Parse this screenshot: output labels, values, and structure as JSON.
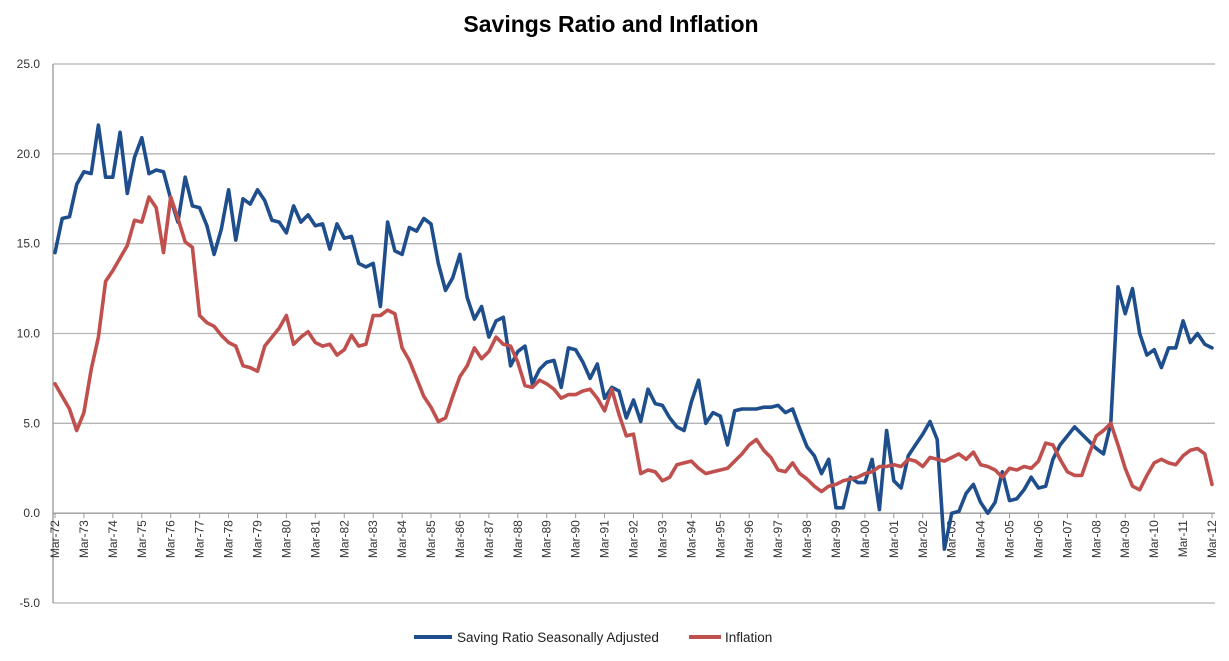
{
  "chart_data": {
    "type": "line",
    "title": "Savings Ratio and Inflation",
    "xlabel": "",
    "ylabel": "",
    "ylim": [
      -5,
      25
    ],
    "y_ticks": [
      "25.0",
      "20.0",
      "15.0",
      "10.0",
      "5.0",
      "0.0",
      "-5.0"
    ],
    "y_tick_values": [
      25,
      20,
      15,
      10,
      5,
      0,
      -5
    ],
    "frequency": "quarterly",
    "grid": true,
    "legend": "bottom",
    "x_tick_labels": [
      "Mar-72",
      "Mar-73",
      "Mar-74",
      "Mar-75",
      "Mar-76",
      "Mar-77",
      "Mar-78",
      "Mar-79",
      "Mar-80",
      "Mar-81",
      "Mar-82",
      "Mar-83",
      "Mar-84",
      "Mar-85",
      "Mar-86",
      "Mar-87",
      "Mar-88",
      "Mar-89",
      "Mar-90",
      "Mar-91",
      "Mar-92",
      "Mar-93",
      "Mar-94",
      "Mar-95",
      "Mar-96",
      "Mar-97",
      "Mar-98",
      "Mar-99",
      "Mar-00",
      "Mar-01",
      "Mar-02",
      "Mar-03",
      "Mar-04",
      "Mar-05",
      "Mar-06",
      "Mar-07",
      "Mar-08",
      "Mar-09",
      "Mar-10",
      "Mar-11",
      "Mar-12"
    ],
    "series": [
      {
        "name": "Saving Ratio Seasonally Adjusted",
        "color": "#1f4e8c",
        "values": [
          14.5,
          16.4,
          16.5,
          18.3,
          19.0,
          18.9,
          21.6,
          18.7,
          18.7,
          21.2,
          17.8,
          19.8,
          20.9,
          18.9,
          19.1,
          19.0,
          17.5,
          16.2,
          18.7,
          17.1,
          17.0,
          16.0,
          14.4,
          15.8,
          18.0,
          15.2,
          17.5,
          17.2,
          18.0,
          17.4,
          16.3,
          16.2,
          15.6,
          17.1,
          16.2,
          16.6,
          16.0,
          16.1,
          14.7,
          16.1,
          15.3,
          15.4,
          13.9,
          13.7,
          13.9,
          11.5,
          16.2,
          14.6,
          14.4,
          15.9,
          15.7,
          16.4,
          16.1,
          13.9,
          12.4,
          13.1,
          14.4,
          12.0,
          10.8,
          11.5,
          9.8,
          10.7,
          10.9,
          8.2,
          9.0,
          9.3,
          7.2,
          8.0,
          8.4,
          8.5,
          7.0,
          9.2,
          9.1,
          8.4,
          7.5,
          8.3,
          6.4,
          7.0,
          6.8,
          5.3,
          6.3,
          5.1,
          6.9,
          6.1,
          6.0,
          5.3,
          4.8,
          4.6,
          6.2,
          7.4,
          5.0,
          5.6,
          5.4,
          3.8,
          5.7,
          5.8,
          5.8,
          5.8,
          5.9,
          5.9,
          6.0,
          5.6,
          5.8,
          4.7,
          3.7,
          3.2,
          2.2,
          3.0,
          0.3,
          0.3,
          2.0,
          1.7,
          1.7,
          3.0,
          0.2,
          4.6,
          1.8,
          1.4,
          3.2,
          3.8,
          4.4,
          5.1,
          4.1,
          -2.0,
          0.0,
          0.1,
          1.1,
          1.6,
          0.6,
          0.0,
          0.6,
          2.3,
          0.7,
          0.8,
          1.3,
          2.0,
          1.4,
          1.5,
          3.0,
          3.8,
          4.3,
          4.8,
          4.4,
          4.0,
          3.6,
          3.3,
          5.0,
          12.6,
          11.1,
          12.5,
          10.0,
          8.8,
          9.1,
          8.1,
          9.2,
          9.2,
          10.7,
          9.5,
          10.0,
          9.4,
          9.2
        ]
      },
      {
        "name": "Inflation",
        "color": "#c0504d",
        "values": [
          7.2,
          6.5,
          5.8,
          4.6,
          5.6,
          8.0,
          9.8,
          12.9,
          13.5,
          14.2,
          14.9,
          16.3,
          16.2,
          17.6,
          17.0,
          14.5,
          17.6,
          16.4,
          15.1,
          14.8,
          11.0,
          10.6,
          10.4,
          9.9,
          9.5,
          9.3,
          8.2,
          8.1,
          7.9,
          9.3,
          9.8,
          10.3,
          11.0,
          9.4,
          9.8,
          10.1,
          9.5,
          9.3,
          9.4,
          8.8,
          9.1,
          9.9,
          9.3,
          9.4,
          11.0,
          11.0,
          11.3,
          11.1,
          9.2,
          8.5,
          7.5,
          6.5,
          5.9,
          5.1,
          5.3,
          6.5,
          7.6,
          8.2,
          9.2,
          8.6,
          9.0,
          9.8,
          9.4,
          9.3,
          8.4,
          7.1,
          7.0,
          7.4,
          7.2,
          6.9,
          6.4,
          6.6,
          6.6,
          6.8,
          6.9,
          6.4,
          5.7,
          6.9,
          5.5,
          4.3,
          4.4,
          2.2,
          2.4,
          2.3,
          1.8,
          2.0,
          2.7,
          2.8,
          2.9,
          2.5,
          2.2,
          2.3,
          2.4,
          2.5,
          2.9,
          3.3,
          3.8,
          4.1,
          3.5,
          3.1,
          2.4,
          2.3,
          2.8,
          2.2,
          1.9,
          1.5,
          1.2,
          1.5,
          1.6,
          1.8,
          1.9,
          2.0,
          2.2,
          2.3,
          2.6,
          2.6,
          2.7,
          2.6,
          3.0,
          2.9,
          2.6,
          3.1,
          3.0,
          2.9,
          3.1,
          3.3,
          3.0,
          3.4,
          2.7,
          2.6,
          2.4,
          2.0,
          2.5,
          2.4,
          2.6,
          2.5,
          2.9,
          3.9,
          3.8,
          3.0,
          2.3,
          2.1,
          2.1,
          3.3,
          4.3,
          4.6,
          5.0,
          3.8,
          2.5,
          1.5,
          1.3,
          2.1,
          2.8,
          3.0,
          2.8,
          2.7,
          3.2,
          3.5,
          3.6,
          3.3,
          1.6
        ]
      }
    ]
  }
}
